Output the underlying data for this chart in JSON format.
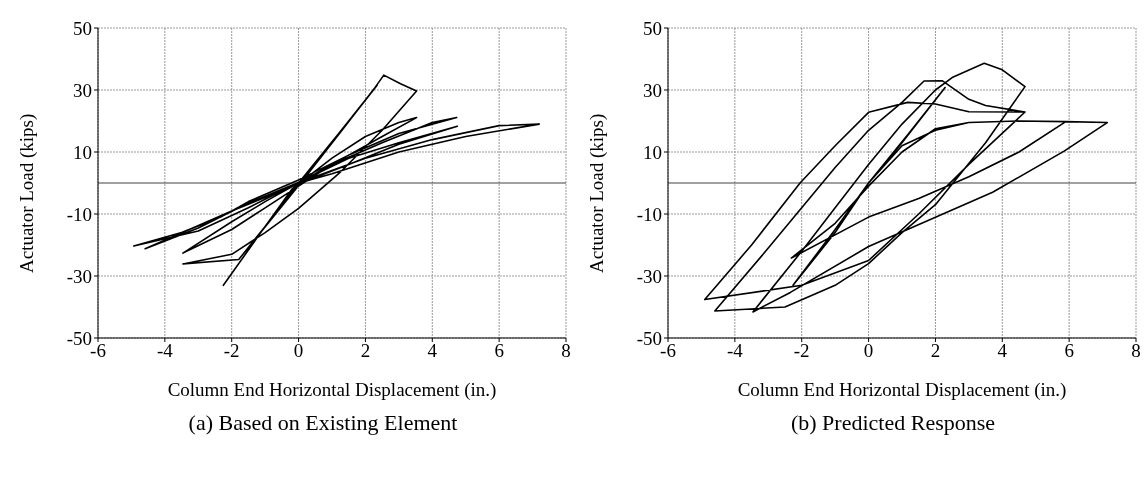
{
  "chart_data": [
    {
      "type": "line",
      "xlabel": "Column End Horizontal Displacement (in.)",
      "ylabel": "Actuator Load (kips)",
      "annotations": [
        "(a) Based on Existing Element"
      ],
      "xlim": [
        -6,
        8
      ],
      "xticks": [
        -6,
        -4,
        -2,
        0,
        2,
        4,
        6,
        8
      ],
      "ylim": [
        -50,
        50
      ],
      "yticks": [
        -50,
        -30,
        -10,
        10,
        30,
        50
      ],
      "grid": true,
      "marker": "none",
      "line_style": "solid",
      "ref_lines": [
        {
          "axis": "y",
          "value": 0,
          "color": "#404040"
        }
      ],
      "series": [
        {
          "color": "#000000",
          "x": [
            0,
            1.2,
            2.35,
            1,
            0,
            -1,
            -2.25,
            -1.1,
            0.1,
            1.3,
            2.3,
            2.55,
            3.05,
            3.53,
            2.5,
            1.2,
            0,
            -1,
            -2,
            -3.46,
            -1.79,
            -1,
            -0.2,
            1,
            2,
            3,
            3.53,
            2.5,
            1.5,
            0.5,
            0.05,
            -1,
            -2,
            -3.46,
            -2,
            -1,
            0,
            1,
            2.5,
            4,
            4.73,
            3,
            1.5,
            0,
            -1.5,
            -2.33,
            -3.5,
            -4.93,
            -3,
            -1.5,
            -0.1,
            1.5,
            3,
            4.75,
            3,
            1.5,
            0.1,
            -2,
            -4.59,
            -3,
            -1.5,
            -0.15,
            2,
            4,
            6,
            7.2,
            5,
            3,
            1,
            0.2
          ],
          "values": [
            0,
            16,
            31.5,
            13,
            0,
            -14,
            -33,
            -15.5,
            0.5,
            17,
            31,
            34.8,
            32,
            29.7,
            17,
            3,
            -8.2,
            -16,
            -23,
            -26.1,
            -24.7,
            -14,
            -2,
            8,
            15,
            19.5,
            21.1,
            15,
            9,
            3,
            0.3,
            -6,
            -12.5,
            -22.6,
            -15,
            -8,
            -1,
            6,
            13,
            19.5,
            21.1,
            16,
            9,
            1,
            -6,
            -11,
            -16,
            -20.3,
            -15.5,
            -8,
            -0.3,
            8,
            13,
            18.3,
            12.5,
            6,
            0.2,
            -9,
            -21.2,
            -14.5,
            -6.5,
            -0.5,
            8,
            14,
            18.5,
            19,
            15,
            10,
            3,
            0.6
          ]
        }
      ]
    },
    {
      "type": "line",
      "xlabel": "Column End Horizontal Displacement (in.)",
      "ylabel": "Actuator Load (kips)",
      "annotations": [
        "(b) Predicted Response"
      ],
      "xlim": [
        -6,
        8
      ],
      "xticks": [
        -6,
        -4,
        -2,
        0,
        2,
        4,
        6,
        8
      ],
      "ylim": [
        -50,
        50
      ],
      "yticks": [
        -50,
        -30,
        -10,
        10,
        30,
        50
      ],
      "grid": true,
      "marker": "none",
      "line_style": "solid",
      "ref_lines": [
        {
          "axis": "y",
          "value": 0,
          "color": "#404040"
        }
      ],
      "series": [
        {
          "color": "#000000",
          "x": [
            0,
            1.2,
            2.29,
            1,
            0,
            -1,
            -2.26,
            -1,
            0,
            1,
            2,
            3,
            4.5,
            5.9,
            4.5,
            3,
            1.5,
            0,
            -2.31,
            -1,
            0,
            1,
            2,
            3,
            4.5,
            5.9,
            7.14,
            5.85,
            3.71,
            1.95,
            0,
            -2.34,
            -3.46,
            -2,
            -1,
            0,
            1,
            2,
            2.5,
            3.46,
            4,
            4.68,
            3.5,
            2,
            1,
            0,
            -1,
            -2.5,
            -4.6,
            -3,
            -2,
            -1,
            0,
            1,
            1.66,
            2.2,
            3,
            3.5,
            4.68,
            3,
            1.5,
            0,
            -2,
            -4.9,
            -3.5,
            -2.05,
            -1,
            0,
            1.17,
            2,
            3,
            4.68
          ],
          "values": [
            0,
            16,
            30.8,
            13,
            0,
            -15,
            -33,
            -16,
            0,
            12,
            17,
            19.5,
            20,
            19.8,
            10,
            2,
            -5,
            -11,
            -24.2,
            -13,
            -1,
            10,
            17.5,
            19.5,
            20,
            19.8,
            19.5,
            10.3,
            -3,
            -11.3,
            -20.5,
            -35.3,
            -41.6,
            -22,
            -8,
            6,
            19,
            30,
            34,
            38.6,
            36.5,
            31.1,
            13,
            -7,
            -16,
            -26,
            -33,
            -40,
            -41.3,
            -21,
            -8,
            5,
            17,
            26,
            32.9,
            33,
            27,
            25,
            22.9,
            6,
            -10,
            -25,
            -33,
            -37.6,
            -20,
            0,
            12,
            22.8,
            26,
            25.5,
            23,
            22.9
          ]
        }
      ]
    }
  ]
}
